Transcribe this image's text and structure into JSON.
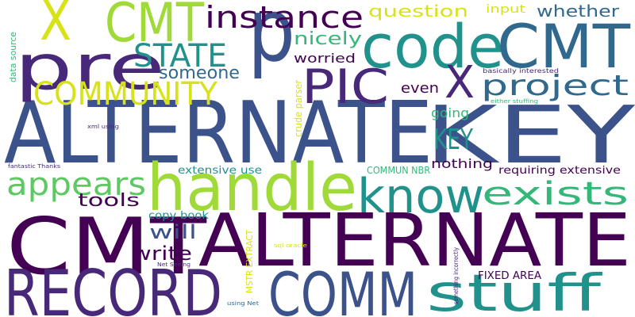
{
  "palette": {
    "dark_purple": "#440154",
    "indigo": "#3b528b",
    "slate_blue": "#31688e",
    "teal": "#21918c",
    "green_teal": "#35b779",
    "light_green": "#5ec962",
    "lime": "#a0da39",
    "yellow": "#d8e219",
    "violet": "#482878"
  },
  "words": [
    {
      "text": "ALTERNATE",
      "color": "#3b528b"
    },
    {
      "text": "CMT",
      "color": "#440154"
    },
    {
      "text": "ALTERNATE",
      "color": "#440154"
    },
    {
      "text": "KEY",
      "color": "#3b528b"
    },
    {
      "text": "p",
      "color": "#3b528b"
    },
    {
      "text": "handle",
      "color": "#a0da39"
    },
    {
      "text": "RECORD",
      "color": "#482878"
    },
    {
      "text": "COMM",
      "color": "#3b528b"
    },
    {
      "text": "code",
      "color": "#21918c"
    },
    {
      "text": "CMT",
      "color": "#31688e"
    },
    {
      "text": "pre",
      "color": "#482878"
    },
    {
      "text": "X",
      "color": "#d8e219"
    },
    {
      "text": "CMT",
      "color": "#a0da39"
    },
    {
      "text": "know",
      "color": "#21918c"
    },
    {
      "text": "stuff",
      "color": "#21918c"
    },
    {
      "text": "PIC",
      "color": "#482878"
    },
    {
      "text": "X",
      "color": "#482878"
    },
    {
      "text": "instance",
      "color": "#440154"
    },
    {
      "text": "COMMUNITY",
      "color": "#d8e219"
    },
    {
      "text": "STATE",
      "color": "#21918c"
    },
    {
      "text": "project",
      "color": "#31688e"
    },
    {
      "text": "appears",
      "color": "#5ec962"
    },
    {
      "text": "exists",
      "color": "#35b779"
    },
    {
      "text": "KEY",
      "color": "#21918c"
    },
    {
      "text": "tools",
      "color": "#440154"
    },
    {
      "text": "will",
      "color": "#3b528b"
    },
    {
      "text": "write",
      "color": "#440154"
    },
    {
      "text": "someone",
      "color": "#31688e"
    },
    {
      "text": "question",
      "color": "#d8e219"
    },
    {
      "text": "whether",
      "color": "#31688e"
    },
    {
      "text": "nicely",
      "color": "#35b779"
    },
    {
      "text": "worried",
      "color": "#440154"
    },
    {
      "text": "even",
      "color": "#440154"
    },
    {
      "text": "going",
      "color": "#35b779"
    },
    {
      "text": "nothing",
      "color": "#440154"
    },
    {
      "text": "input",
      "color": "#d8e219"
    },
    {
      "text": "extensive use",
      "color": "#21918c"
    },
    {
      "text": "requiring extensive",
      "color": "#440154"
    },
    {
      "text": "COMMUN NBR",
      "color": "#35b779"
    },
    {
      "text": "copy book",
      "color": "#21918c"
    },
    {
      "text": "FIXED AREA",
      "color": "#440154"
    },
    {
      "text": "crude parser",
      "color": "#d8e219"
    },
    {
      "text": "data source",
      "color": "#35b779"
    },
    {
      "text": "MSTR EXTRACT",
      "color": "#d8e219"
    },
    {
      "text": "something incorrectly",
      "color": "#482878"
    },
    {
      "text": "basically interested",
      "color": "#482878"
    },
    {
      "text": "either stuffing",
      "color": "#35b779"
    },
    {
      "text": "xml using",
      "color": "#482878"
    },
    {
      "text": "fantastic Thanks",
      "color": "#482878"
    },
    {
      "text": "sql oracle",
      "color": "#d8e219"
    },
    {
      "text": "Net Seeing",
      "color": "#482878"
    },
    {
      "text": "using Net",
      "color": "#31688e"
    }
  ]
}
